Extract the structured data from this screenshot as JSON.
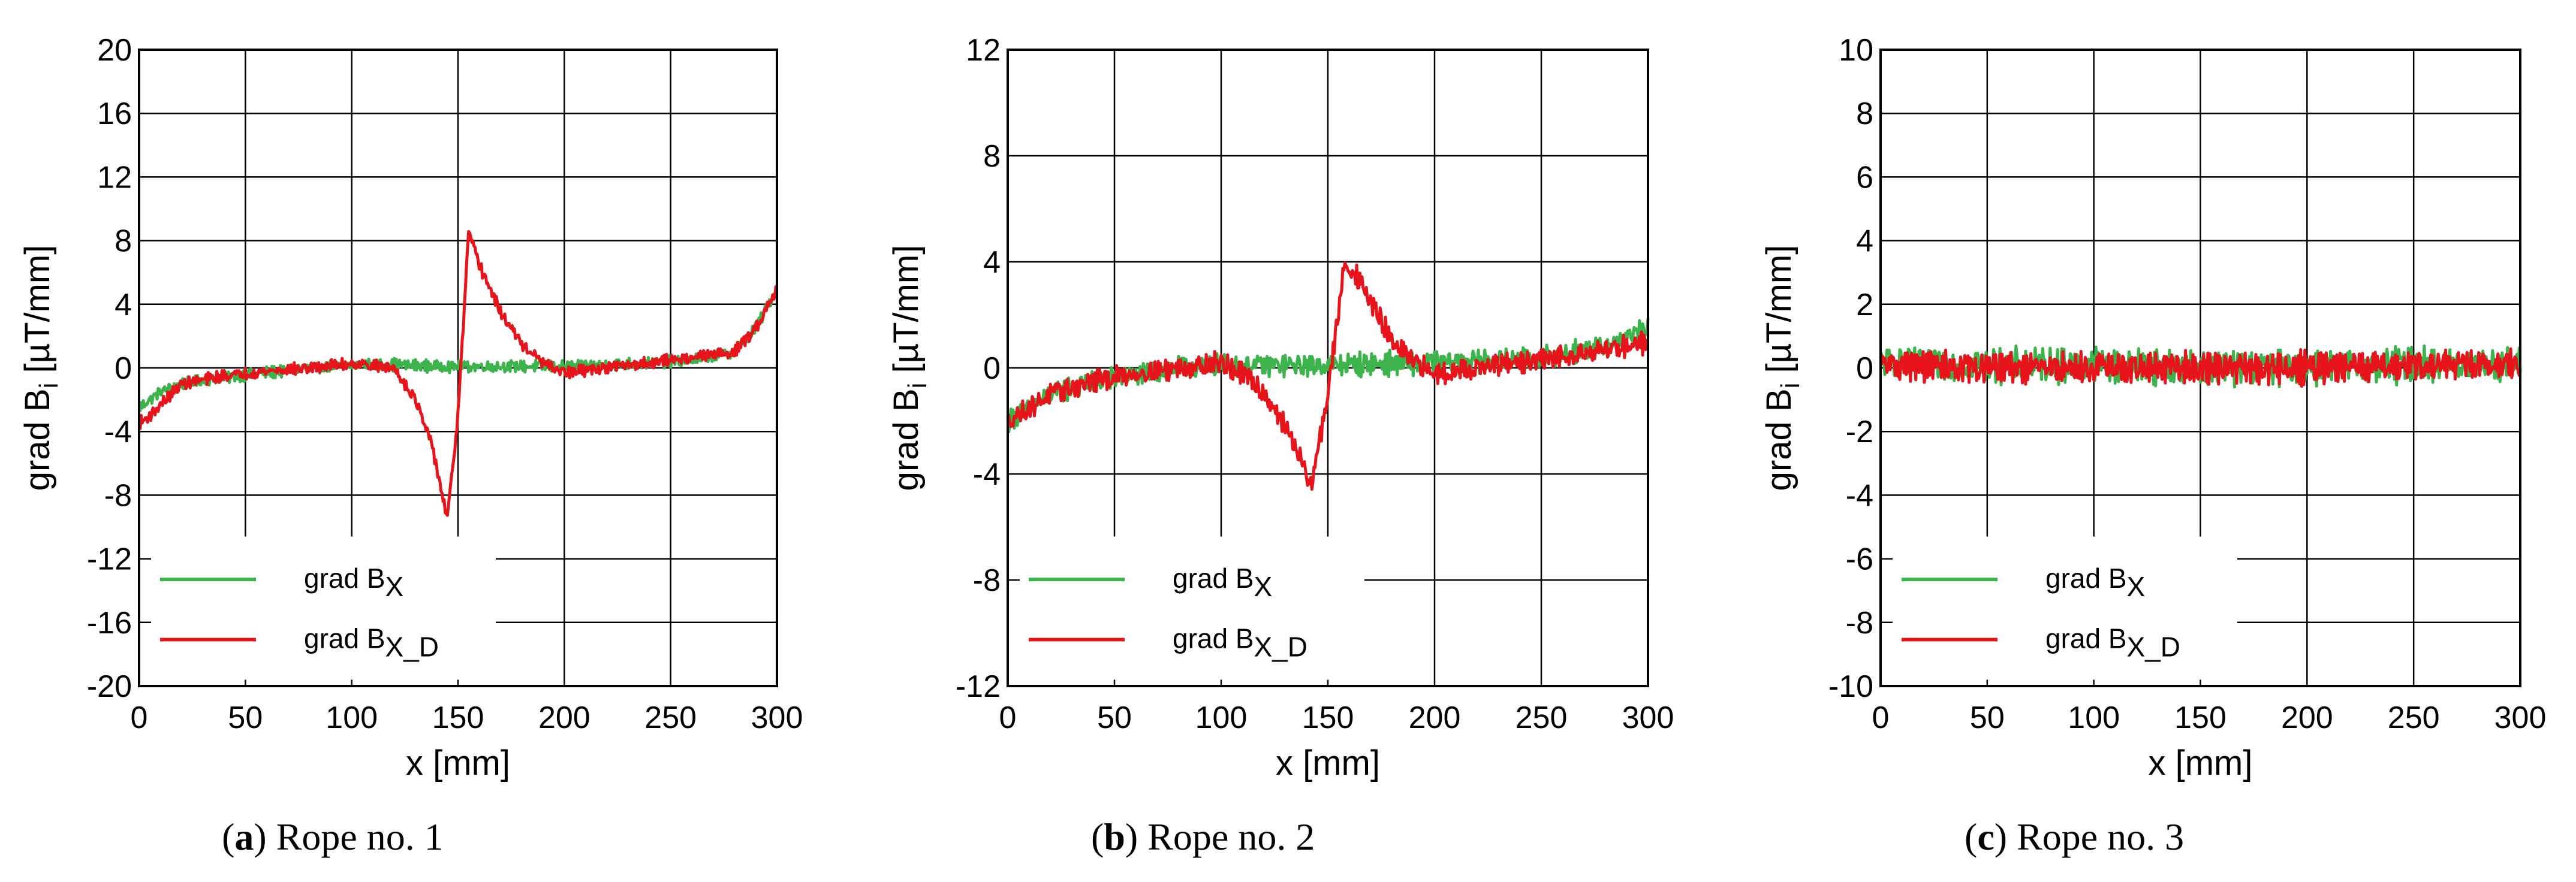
{
  "figure": {
    "colors": {
      "bx": "#3cb44b",
      "bxd": "#e8141c",
      "grid": "#000000",
      "text": "#000000"
    },
    "charts": [
      {
        "letter": "a",
        "caption": "Rope no. 1",
        "xlabel": "x [mm]",
        "ylabel_main": "grad B",
        "ylabel_sub": "i",
        "ylabel_unit": " [µT/mm]",
        "legend_prefix": "grad B",
        "legend_sub1": "X",
        "legend_sub2": "X_D"
      },
      {
        "letter": "b",
        "caption": "Rope no. 2",
        "xlabel": "x [mm]",
        "ylabel_main": "grad B",
        "ylabel_sub": "i",
        "ylabel_unit": " [µT/mm]",
        "legend_prefix": "grad B",
        "legend_sub1": "X",
        "legend_sub2": "X_D"
      },
      {
        "letter": "c",
        "caption": "Rope no. 3",
        "xlabel": "x [mm]",
        "ylabel_main": "grad B",
        "ylabel_sub": "i",
        "ylabel_unit": " [µT/mm]",
        "legend_prefix": "grad B",
        "legend_sub1": "X",
        "legend_sub2": "X_D"
      }
    ]
  },
  "chart_data": [
    {
      "type": "line",
      "title": "(a) Rope no. 1",
      "xlabel": "x [mm]",
      "ylabel": "grad Bi [µT/mm]",
      "xlim": [
        0,
        300
      ],
      "ylim": [
        -20,
        20
      ],
      "xticks": [
        0,
        50,
        100,
        150,
        200,
        250,
        300
      ],
      "yticks": [
        -20,
        -16,
        -12,
        -8,
        -4,
        0,
        4,
        8,
        12,
        16,
        20
      ],
      "grid": true,
      "legend_position": "bottom-left",
      "series": [
        {
          "name": "grad BX",
          "color": "#3cb44b",
          "x": [
            0,
            10,
            20,
            40,
            60,
            80,
            100,
            120,
            140,
            160,
            180,
            200,
            220,
            240,
            260,
            280,
            290,
            300
          ],
          "y": [
            -2.5,
            -1.5,
            -1.0,
            -0.6,
            -0.3,
            0.0,
            0.2,
            0.2,
            0.1,
            0.1,
            0.1,
            0.1,
            0.2,
            0.3,
            0.5,
            1.0,
            2.5,
            5.0
          ],
          "noise_amplitude": 0.6
        },
        {
          "name": "grad BX_D",
          "color": "#e8141c",
          "x": [
            0,
            5,
            20,
            40,
            60,
            80,
            100,
            120,
            130,
            138,
            145,
            150,
            155,
            160,
            170,
            180,
            190,
            200,
            250,
            280,
            290,
            300
          ],
          "y": [
            -3.5,
            -3.0,
            -1.0,
            -0.5,
            -0.2,
            0.0,
            0.3,
            0.0,
            -2.0,
            -5.0,
            -9.5,
            -3.0,
            8.5,
            6.5,
            3.5,
            1.5,
            0.3,
            -0.3,
            0.5,
            1.0,
            2.5,
            5.0
          ],
          "noise_amplitude": 0.6
        }
      ]
    },
    {
      "type": "line",
      "title": "(b) Rope no. 2",
      "xlabel": "x [mm]",
      "ylabel": "grad Bi [µT/mm]",
      "xlim": [
        0,
        300
      ],
      "ylim": [
        -12,
        12
      ],
      "xticks": [
        0,
        50,
        100,
        150,
        200,
        250,
        300
      ],
      "yticks": [
        -12,
        -8,
        -4,
        0,
        4,
        8,
        12
      ],
      "grid": true,
      "legend_position": "bottom-left",
      "series": [
        {
          "name": "grad BX",
          "color": "#3cb44b",
          "x": [
            0,
            10,
            20,
            40,
            60,
            80,
            100,
            150,
            200,
            250,
            280,
            300
          ],
          "y": [
            -2.0,
            -1.5,
            -1.0,
            -0.5,
            -0.3,
            0.0,
            0.1,
            0.1,
            0.2,
            0.4,
            0.8,
            1.5
          ],
          "noise_amplitude": 0.7
        },
        {
          "name": "grad BX_D",
          "color": "#e8141c",
          "x": [
            0,
            10,
            20,
            40,
            60,
            80,
            100,
            115,
            125,
            135,
            142,
            150,
            158,
            163,
            170,
            180,
            190,
            200,
            250,
            300
          ],
          "y": [
            -2.0,
            -1.5,
            -1.0,
            -0.5,
            -0.2,
            0.0,
            0.2,
            -0.5,
            -1.5,
            -3.0,
            -4.5,
            -1.0,
            4.0,
            3.5,
            2.5,
            1.0,
            0.2,
            -0.2,
            0.3,
            1.0
          ],
          "noise_amplitude": 0.7
        }
      ]
    },
    {
      "type": "line",
      "title": "(c) Rope no. 3",
      "xlabel": "x [mm]",
      "ylabel": "grad Bi [µT/mm]",
      "xlim": [
        0,
        300
      ],
      "ylim": [
        -10,
        10
      ],
      "xticks": [
        0,
        50,
        100,
        150,
        200,
        250,
        300
      ],
      "yticks": [
        -10,
        -8,
        -6,
        -4,
        -2,
        0,
        2,
        4,
        6,
        8,
        10
      ],
      "grid": true,
      "legend_position": "bottom-left",
      "series": [
        {
          "name": "grad BX",
          "color": "#3cb44b",
          "x": [
            0,
            50,
            100,
            150,
            200,
            250,
            300
          ],
          "y": [
            0.2,
            0.1,
            0.1,
            0.0,
            0.0,
            0.1,
            0.1
          ],
          "noise_amplitude": 0.9
        },
        {
          "name": "grad BX_D",
          "color": "#e8141c",
          "x": [
            0,
            50,
            100,
            150,
            200,
            250,
            300
          ],
          "y": [
            0.1,
            0.0,
            0.0,
            0.0,
            0.0,
            0.1,
            0.1
          ],
          "noise_amplitude": 0.8
        }
      ]
    }
  ]
}
